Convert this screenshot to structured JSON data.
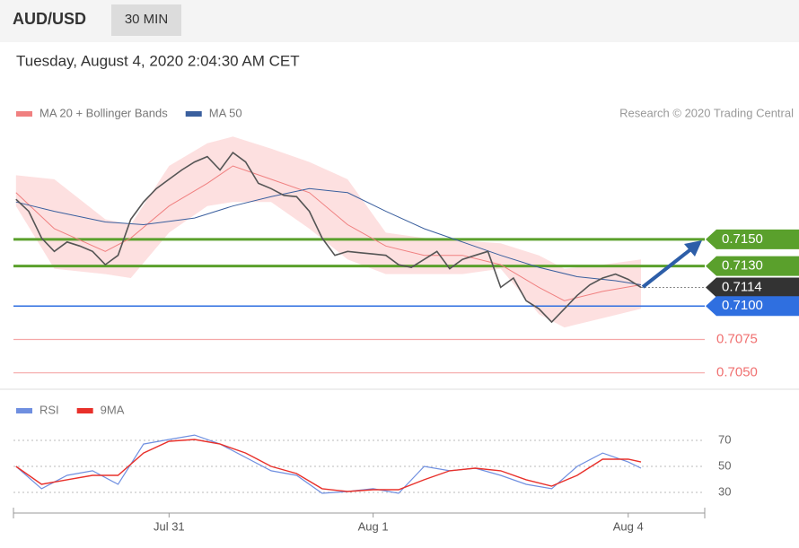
{
  "chart_data": {
    "type": "line",
    "title": "AUD/USD",
    "interval": "30 MIN",
    "subtitle": "Tuesday, August 4, 2020 2:04:30 AM CET",
    "credit": "Research © 2020 Trading Central",
    "xlim": [
      -0.2,
      54
    ],
    "xticks": [
      {
        "value": 12,
        "label": "Jul 31"
      },
      {
        "value": 28,
        "label": "Aug 1"
      },
      {
        "value": 48,
        "label": "Aug 4"
      }
    ],
    "ylim": [
      0.7035,
      0.7245
    ],
    "price": {
      "color": "#555555",
      "x": [
        0,
        1,
        2,
        3,
        4,
        5,
        6,
        7,
        8,
        9,
        10,
        11,
        12,
        13,
        14,
        15,
        16,
        17,
        18,
        19,
        20,
        21,
        22,
        23,
        24,
        25,
        26,
        27,
        28,
        29,
        30,
        31,
        32,
        33,
        34,
        35,
        36,
        37,
        38,
        39,
        40,
        41,
        42,
        43,
        44,
        45,
        46,
        47,
        48,
        49
      ],
      "values": [
        0.718,
        0.7171,
        0.7151,
        0.7141,
        0.7148,
        0.7145,
        0.7141,
        0.7131,
        0.7138,
        0.7165,
        0.7178,
        0.7188,
        0.7195,
        0.7202,
        0.7208,
        0.7212,
        0.7202,
        0.7215,
        0.7208,
        0.7192,
        0.7188,
        0.7183,
        0.7182,
        0.7171,
        0.7151,
        0.7138,
        0.7141,
        0.714,
        0.7139,
        0.7138,
        0.7131,
        0.7129,
        0.7135,
        0.7141,
        0.7128,
        0.7135,
        0.7138,
        0.7141,
        0.7114,
        0.7121,
        0.7104,
        0.7098,
        0.7088,
        0.7098,
        0.7108,
        0.7116,
        0.7121,
        0.7124,
        0.712,
        0.7114
      ]
    },
    "series": [
      {
        "name": "MA 20 + Bollinger Bands",
        "color": "#f08080",
        "band_color": "#fde0e0",
        "x": [
          0,
          3,
          7,
          9,
          12,
          15,
          17,
          20,
          23,
          26,
          29,
          32,
          35,
          38,
          41,
          43,
          46,
          49
        ],
        "values": [
          0.7185,
          0.7158,
          0.7141,
          0.7151,
          0.7175,
          0.7192,
          0.7205,
          0.7195,
          0.7185,
          0.7161,
          0.7145,
          0.7138,
          0.7138,
          0.7131,
          0.7114,
          0.7104,
          0.7111,
          0.7116
        ],
        "upper": [
          0.7198,
          0.7195,
          0.7165,
          0.7161,
          0.7205,
          0.7222,
          0.7227,
          0.7218,
          0.7208,
          0.7195,
          0.7155,
          0.7151,
          0.7149,
          0.7147,
          0.7138,
          0.7128,
          0.7131,
          0.7135
        ],
        "lower": [
          0.7175,
          0.7128,
          0.7124,
          0.7121,
          0.7155,
          0.7175,
          0.7178,
          0.7178,
          0.7158,
          0.7135,
          0.7124,
          0.7124,
          0.7124,
          0.7128,
          0.7094,
          0.7084,
          0.7091,
          0.7098
        ]
      },
      {
        "name": "MA 50",
        "color": "#3a5f9e",
        "x": [
          0,
          3,
          7,
          10,
          14,
          17,
          20,
          23,
          26,
          29,
          32,
          35,
          38,
          41,
          44,
          47,
          49
        ],
        "values": [
          0.7178,
          0.7171,
          0.7163,
          0.7161,
          0.7166,
          0.7175,
          0.7182,
          0.7188,
          0.7185,
          0.7171,
          0.7158,
          0.7148,
          0.7138,
          0.7129,
          0.7122,
          0.7119,
          0.7116
        ]
      }
    ],
    "levels": [
      {
        "value": 0.715,
        "label": "0.7150",
        "color": "#5aa02c"
      },
      {
        "value": 0.713,
        "label": "0.7130",
        "color": "#5aa02c"
      },
      {
        "value": 0.7114,
        "label": "0.7114",
        "color": "#333333"
      },
      {
        "value": 0.71,
        "label": "0.7100",
        "color": "#2f6fe0"
      },
      {
        "value": 0.7075,
        "label": "0.7075",
        "color": "#f07070"
      },
      {
        "value": 0.705,
        "label": "0.7050",
        "color": "#f07070"
      }
    ],
    "rsi_panel": {
      "ylim": [
        20,
        80
      ],
      "yticks": [
        30,
        50,
        70
      ],
      "series": [
        {
          "name": "RSI",
          "color": "#6f8fe0",
          "x": [
            0,
            2,
            4,
            6,
            8,
            10,
            12,
            14,
            16,
            18,
            20,
            22,
            24,
            26,
            28,
            30,
            32,
            34,
            36,
            38,
            40,
            42,
            44,
            46,
            48,
            49
          ],
          "values": [
            50,
            32.8,
            43.1,
            46.6,
            36.2,
            67.2,
            70.7,
            74.1,
            67.2,
            56.9,
            46.6,
            43.1,
            29.3,
            30.7,
            32.8,
            29.3,
            50,
            46.6,
            48.6,
            43.1,
            36.2,
            32.8,
            50,
            60.3,
            53.4,
            48.6
          ]
        },
        {
          "name": "9MA",
          "color": "#e8302a",
          "x": [
            0,
            2,
            4,
            6,
            8,
            10,
            12,
            14,
            16,
            18,
            20,
            22,
            24,
            26,
            28,
            30,
            32,
            34,
            36,
            38,
            40,
            42,
            44,
            46,
            48,
            49
          ],
          "values": [
            50,
            36.2,
            39.7,
            43.1,
            43.1,
            60.3,
            69.3,
            70.7,
            67.2,
            60.3,
            50,
            44.5,
            32.8,
            30.7,
            32.1,
            32.1,
            39.7,
            46.6,
            48.6,
            46.6,
            39.7,
            34.8,
            43.1,
            55.5,
            55.5,
            53.4
          ]
        }
      ]
    }
  }
}
